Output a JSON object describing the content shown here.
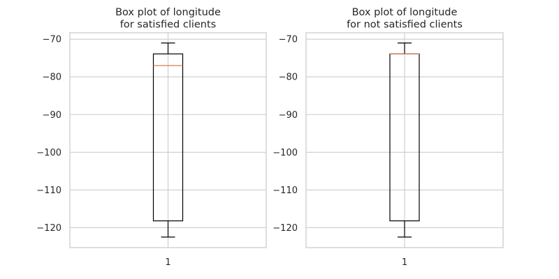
{
  "figure": {
    "background": "#ffffff",
    "grid_color": "#cccccc",
    "text_color": "#262626"
  },
  "chart_data": [
    {
      "type": "box",
      "title": "Box plot of longitude\nfor satisfied clients",
      "xlabel": "",
      "ylabel": "",
      "categories": [
        "1"
      ],
      "ylim": [
        -125.3,
        -68.3
      ],
      "yticks": [
        -70,
        -80,
        -90,
        -100,
        -110,
        -120
      ],
      "ytick_labels": [
        "−70",
        "−80",
        "−90",
        "−100",
        "−110",
        "−120"
      ],
      "grid": true,
      "boxes": [
        {
          "label": "1",
          "whisker_low": -122.5,
          "q1": -118.2,
          "median": -77.0,
          "q3": -73.9,
          "whisker_high": -71.0
        }
      ],
      "colors": {
        "box": "#000000",
        "median": "#e07b54",
        "whisker": "#000000"
      }
    },
    {
      "type": "box",
      "title": "Box plot of longitude\nfor not satisfied clients",
      "xlabel": "",
      "ylabel": "",
      "categories": [
        "1"
      ],
      "ylim": [
        -125.3,
        -68.3
      ],
      "yticks": [
        -70,
        -80,
        -90,
        -100,
        -110,
        -120
      ],
      "ytick_labels": [
        "−70",
        "−80",
        "−90",
        "−100",
        "−110",
        "−120"
      ],
      "grid": true,
      "boxes": [
        {
          "label": "1",
          "whisker_low": -122.5,
          "q1": -118.2,
          "median": -73.9,
          "q3": -73.9,
          "whisker_high": -71.0
        }
      ],
      "colors": {
        "box": "#000000",
        "median": "#e07b54",
        "whisker": "#000000"
      }
    }
  ]
}
